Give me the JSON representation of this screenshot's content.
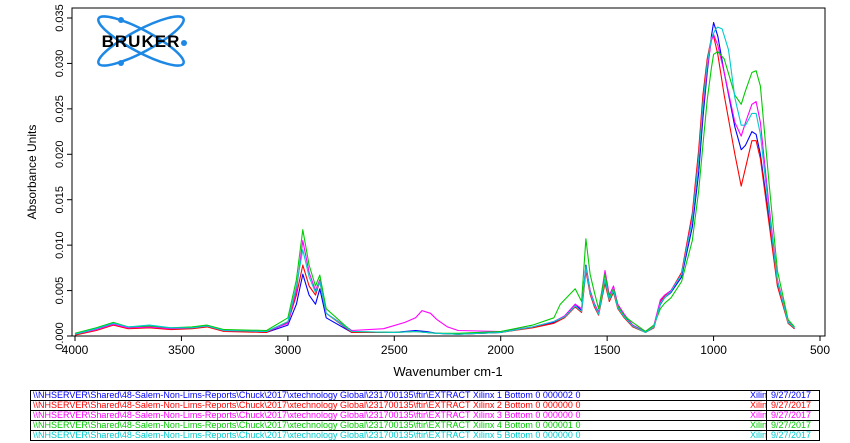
{
  "chart_data": {
    "type": "line",
    "xlabel": "Wavenumber cm-1",
    "ylabel": "Absorbance Units",
    "xlim": [
      4000,
      500
    ],
    "ylim": [
      0,
      0.035
    ],
    "x_ticks": [
      "4000",
      "3500",
      "3000",
      "2500",
      "2000",
      "1500",
      "1000",
      "500"
    ],
    "y_ticks": [
      "0.000",
      "0.005",
      "0.010",
      "0.015",
      "0.020",
      "0.025",
      "0.030",
      "0.035"
    ],
    "grid": false,
    "series": [
      {
        "color": "#0000ff",
        "x": [
          4000,
          3900,
          3820,
          3750,
          3650,
          3550,
          3450,
          3380,
          3300,
          3100,
          3000,
          2960,
          2930,
          2900,
          2870,
          2850,
          2820,
          2700,
          2500,
          2400,
          2350,
          2300,
          2200,
          2000,
          1850,
          1750,
          1700,
          1650,
          1620,
          1600,
          1580,
          1560,
          1540,
          1510,
          1490,
          1470,
          1450,
          1420,
          1380,
          1320,
          1280,
          1250,
          1230,
          1200,
          1150,
          1100,
          1070,
          1050,
          1030,
          1010,
          1000,
          980,
          950,
          900,
          870,
          850,
          820,
          800,
          780,
          740,
          700,
          650,
          620
        ],
        "y": [
          0.0002,
          0.0008,
          0.0014,
          0.0009,
          0.001,
          0.0008,
          0.0009,
          0.0011,
          0.0006,
          0.0004,
          0.0012,
          0.0035,
          0.0068,
          0.0045,
          0.0035,
          0.0052,
          0.002,
          0.0004,
          0.0004,
          0.0006,
          0.0005,
          0.0003,
          0.0002,
          0.0004,
          0.001,
          0.0015,
          0.0022,
          0.0035,
          0.0028,
          0.0078,
          0.005,
          0.0035,
          0.0025,
          0.006,
          0.004,
          0.005,
          0.0032,
          0.0022,
          0.0012,
          0.0004,
          0.001,
          0.0035,
          0.0042,
          0.0048,
          0.0065,
          0.012,
          0.018,
          0.024,
          0.029,
          0.033,
          0.0345,
          0.033,
          0.029,
          0.023,
          0.0205,
          0.021,
          0.0225,
          0.0222,
          0.02,
          0.013,
          0.006,
          0.0015,
          0.0008
        ]
      },
      {
        "color": "#ff0000",
        "x": [
          4000,
          3900,
          3820,
          3750,
          3650,
          3550,
          3450,
          3380,
          3300,
          3100,
          3000,
          2960,
          2930,
          2900,
          2870,
          2850,
          2820,
          2700,
          2500,
          2400,
          2350,
          2300,
          2200,
          2000,
          1850,
          1750,
          1700,
          1650,
          1620,
          1600,
          1580,
          1560,
          1540,
          1510,
          1490,
          1470,
          1450,
          1420,
          1380,
          1320,
          1280,
          1250,
          1230,
          1200,
          1150,
          1100,
          1070,
          1050,
          1030,
          1010,
          1000,
          980,
          950,
          900,
          870,
          850,
          820,
          800,
          780,
          740,
          700,
          650,
          620
        ],
        "y": [
          0.0001,
          0.0006,
          0.0012,
          0.0008,
          0.0009,
          0.0007,
          0.0008,
          0.001,
          0.0005,
          0.0004,
          0.0015,
          0.0045,
          0.0078,
          0.0055,
          0.0045,
          0.006,
          0.0025,
          0.0004,
          0.0004,
          0.0005,
          0.0004,
          0.0003,
          0.0002,
          0.0004,
          0.0009,
          0.0014,
          0.002,
          0.0032,
          0.0026,
          0.0072,
          0.0046,
          0.0032,
          0.0023,
          0.0058,
          0.0038,
          0.0048,
          0.003,
          0.002,
          0.001,
          0.0004,
          0.0009,
          0.0038,
          0.0044,
          0.005,
          0.007,
          0.0135,
          0.0205,
          0.0265,
          0.0305,
          0.0328,
          0.033,
          0.031,
          0.0265,
          0.02,
          0.0165,
          0.0185,
          0.0215,
          0.0215,
          0.0195,
          0.0125,
          0.0055,
          0.0014,
          0.0008
        ]
      },
      {
        "color": "#ff00ff",
        "x": [
          4000,
          3900,
          3820,
          3750,
          3650,
          3550,
          3450,
          3380,
          3300,
          3100,
          3000,
          2960,
          2930,
          2900,
          2870,
          2850,
          2820,
          2700,
          2550,
          2450,
          2400,
          2370,
          2330,
          2300,
          2250,
          2200,
          2000,
          1850,
          1750,
          1700,
          1650,
          1620,
          1600,
          1580,
          1560,
          1540,
          1510,
          1490,
          1470,
          1450,
          1420,
          1380,
          1320,
          1280,
          1250,
          1230,
          1200,
          1150,
          1100,
          1070,
          1050,
          1030,
          1010,
          1000,
          980,
          950,
          900,
          870,
          850,
          820,
          800,
          780,
          740,
          700,
          650,
          620
        ],
        "y": [
          0.0002,
          0.0007,
          0.0013,
          0.0009,
          0.001,
          0.0008,
          0.0009,
          0.0011,
          0.0006,
          0.0005,
          0.0014,
          0.005,
          0.0105,
          0.007,
          0.005,
          0.0062,
          0.0025,
          0.0006,
          0.0008,
          0.0015,
          0.002,
          0.0028,
          0.0025,
          0.0018,
          0.001,
          0.0006,
          0.0005,
          0.001,
          0.0016,
          0.0022,
          0.0035,
          0.003,
          0.0075,
          0.005,
          0.0036,
          0.0026,
          0.0072,
          0.0045,
          0.0055,
          0.0035,
          0.0024,
          0.0012,
          0.0005,
          0.0012,
          0.004,
          0.0045,
          0.005,
          0.0068,
          0.013,
          0.0195,
          0.025,
          0.0295,
          0.0325,
          0.0332,
          0.032,
          0.029,
          0.0235,
          0.022,
          0.0235,
          0.0255,
          0.0258,
          0.0235,
          0.0145,
          0.0062,
          0.0016,
          0.0009
        ]
      },
      {
        "color": "#00cc00",
        "x": [
          4000,
          3900,
          3820,
          3750,
          3650,
          3550,
          3450,
          3380,
          3300,
          3100,
          3000,
          2960,
          2930,
          2900,
          2870,
          2850,
          2820,
          2700,
          2500,
          2400,
          2350,
          2300,
          2200,
          2000,
          1850,
          1750,
          1720,
          1700,
          1650,
          1620,
          1600,
          1580,
          1560,
          1540,
          1510,
          1490,
          1470,
          1450,
          1420,
          1380,
          1320,
          1280,
          1250,
          1230,
          1200,
          1150,
          1100,
          1070,
          1050,
          1030,
          1010,
          1000,
          980,
          950,
          900,
          870,
          850,
          820,
          800,
          780,
          740,
          700,
          650,
          620
        ],
        "y": [
          0.0003,
          0.0009,
          0.0015,
          0.001,
          0.0011,
          0.0009,
          0.001,
          0.0012,
          0.0007,
          0.0006,
          0.002,
          0.0062,
          0.0117,
          0.0078,
          0.0055,
          0.0067,
          0.003,
          0.0005,
          0.0004,
          0.0005,
          0.0004,
          0.0003,
          0.0003,
          0.0005,
          0.0012,
          0.002,
          0.0035,
          0.004,
          0.0052,
          0.0038,
          0.0107,
          0.0068,
          0.0048,
          0.003,
          0.0068,
          0.0042,
          0.0052,
          0.0033,
          0.0022,
          0.0015,
          0.0005,
          0.0012,
          0.003,
          0.0036,
          0.0042,
          0.006,
          0.0105,
          0.016,
          0.021,
          0.026,
          0.0295,
          0.031,
          0.0313,
          0.0305,
          0.0265,
          0.0255,
          0.027,
          0.029,
          0.0292,
          0.0275,
          0.017,
          0.0072,
          0.0018,
          0.001
        ]
      },
      {
        "color": "#00cccc",
        "x": [
          4000,
          3900,
          3820,
          3750,
          3650,
          3550,
          3450,
          3380,
          3300,
          3100,
          3000,
          2960,
          2930,
          2900,
          2870,
          2850,
          2820,
          2700,
          2500,
          2400,
          2350,
          2300,
          2200,
          2000,
          1850,
          1750,
          1700,
          1650,
          1620,
          1600,
          1580,
          1560,
          1540,
          1510,
          1490,
          1470,
          1450,
          1420,
          1380,
          1320,
          1280,
          1250,
          1230,
          1200,
          1150,
          1100,
          1070,
          1050,
          1030,
          1010,
          990,
          980,
          960,
          930,
          900,
          870,
          850,
          820,
          800,
          780,
          740,
          700,
          650,
          620
        ],
        "y": [
          0.0002,
          0.0008,
          0.0014,
          0.001,
          0.0012,
          0.0009,
          0.0009,
          0.0011,
          0.0006,
          0.0005,
          0.0016,
          0.0055,
          0.0095,
          0.0065,
          0.0048,
          0.006,
          0.0025,
          0.0005,
          0.0004,
          0.0005,
          0.0004,
          0.0003,
          0.0002,
          0.0004,
          0.001,
          0.0016,
          0.0021,
          0.0033,
          0.0027,
          0.0076,
          0.0048,
          0.0034,
          0.0024,
          0.0062,
          0.004,
          0.005,
          0.0031,
          0.0021,
          0.0011,
          0.0004,
          0.001,
          0.0036,
          0.0042,
          0.0049,
          0.0068,
          0.0128,
          0.0195,
          0.0255,
          0.03,
          0.0328,
          0.0338,
          0.034,
          0.0338,
          0.0315,
          0.0262,
          0.0232,
          0.0232,
          0.0245,
          0.0245,
          0.0222,
          0.0138,
          0.006,
          0.0015,
          0.0009
        ]
      }
    ]
  },
  "legend": [
    {
      "path": "\\\\NHSERVER\\Shared\\48-Salem-Non-Lims-Reports\\Chuck\\2017\\xtechnology Global\\231700135\\ftir\\EXTRACT  Xilinx 1 Bottom 0  000002 0",
      "sample": "Xilin",
      "date": "9/27/2017",
      "color": "#0000ff"
    },
    {
      "path": "\\\\NHSERVER\\Shared\\48-Salem-Non-Lims-Reports\\Chuck\\2017\\xtechnology Global\\231700135\\ftir\\EXTRACT  Xilinx 2 Bottom 0  000000 0",
      "sample": "Xilin",
      "date": "9/27/2017",
      "color": "#ff0000"
    },
    {
      "path": "\\\\NHSERVER\\Shared\\48-Salem-Non-Lims-Reports\\Chuck\\2017\\xtechnology Global\\231700135\\ftir\\EXTRACT  Xilinx 3 Bottom 0  000000 0",
      "sample": "Xilin",
      "date": "9/27/2017",
      "color": "#ff00ff"
    },
    {
      "path": "\\\\NHSERVER\\Shared\\48-Salem-Non-Lims-Reports\\Chuck\\2017\\xtechnology Global\\231700135\\ftir\\EXTRACT  Xilinx 4 Bottom 0  000001 0",
      "sample": "Xilin",
      "date": "9/27/2017",
      "color": "#00cc00"
    },
    {
      "path": "\\\\NHSERVER\\Shared\\48-Salem-Non-Lims-Reports\\Chuck\\2017\\xtechnology Global\\231700135\\ftir\\EXTRACT  Xilinx 5 Bottom 0  000000 0",
      "sample": "Xilin",
      "date": "9/27/2017",
      "color": "#00cccc"
    }
  ],
  "logo": {
    "text": "BRUKER",
    "color": "#1e88e5"
  }
}
